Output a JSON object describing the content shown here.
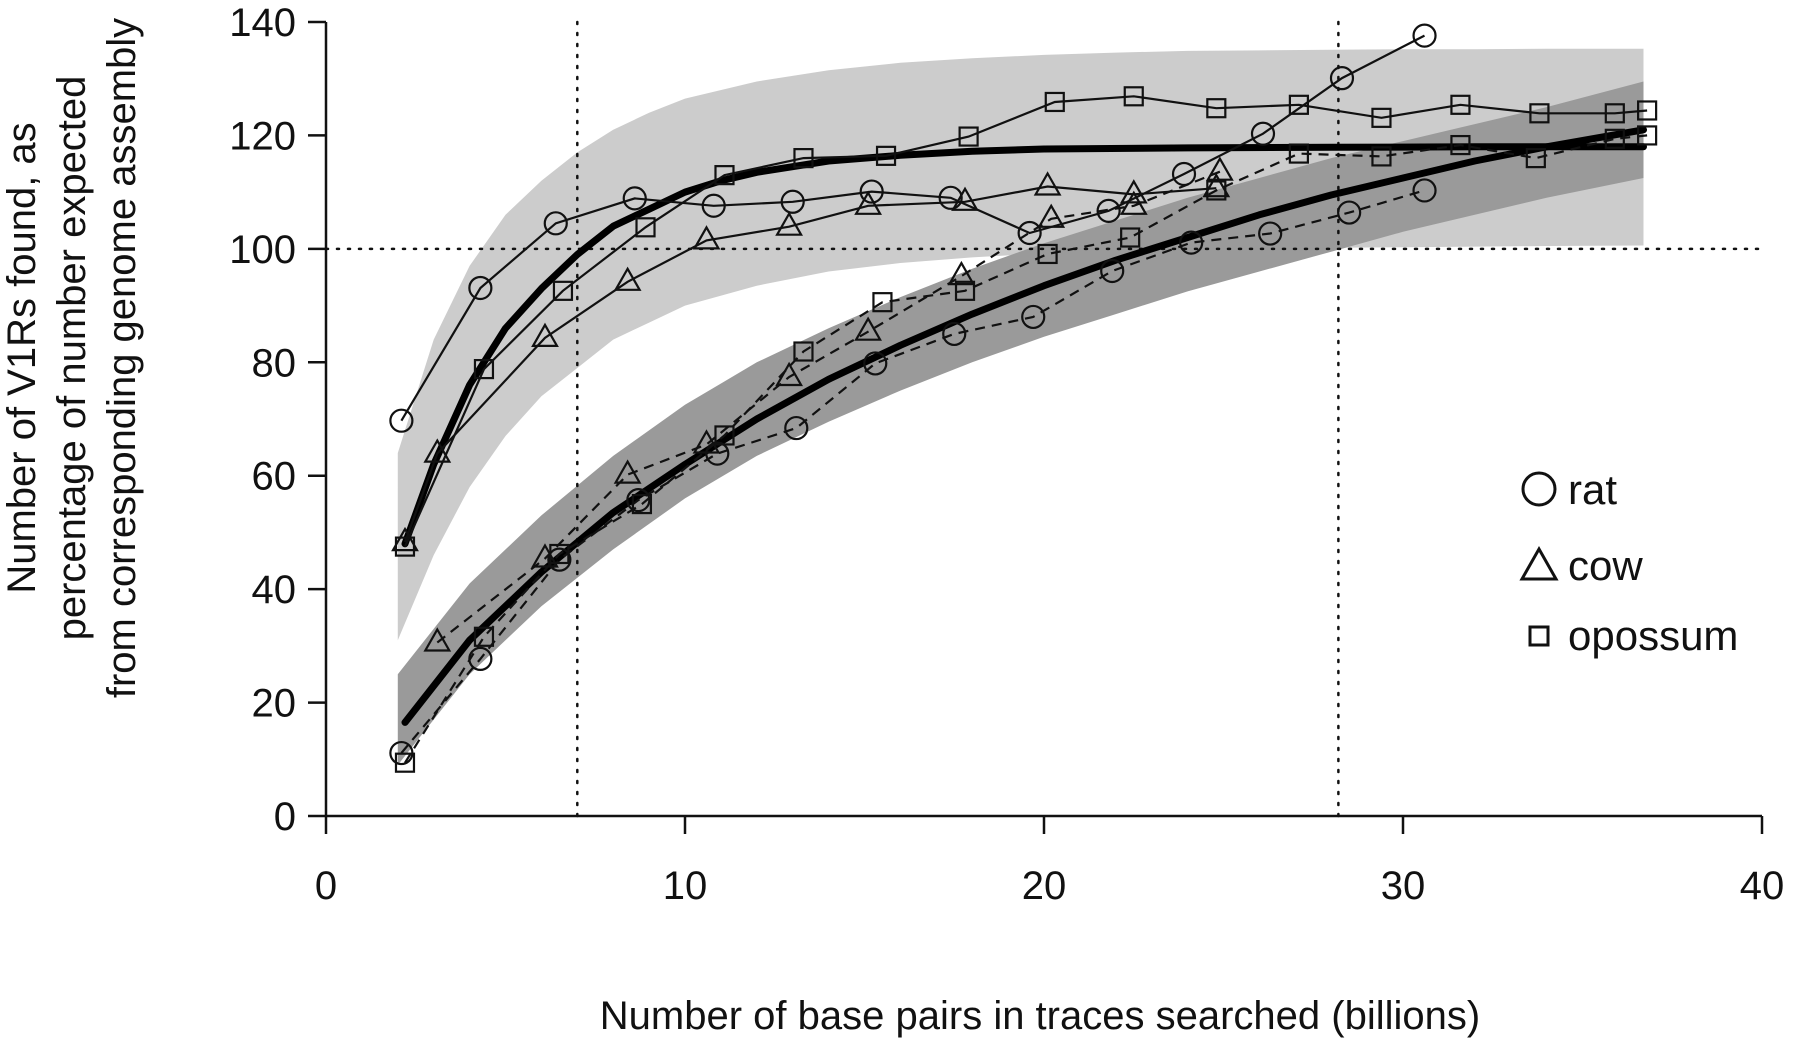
{
  "chart_data": {
    "type": "line",
    "title": "",
    "xlabel": "Number of base pairs in traces searched (billions)",
    "ylabel_lines": [
      "Number of V1Rs found, as",
      "percentage of number expected",
      "from corresponding genome assembly"
    ],
    "xlim": [
      0,
      40
    ],
    "ylim": [
      0,
      140
    ],
    "x_ticks": [
      0,
      10,
      20,
      30,
      40
    ],
    "y_ticks": [
      0,
      20,
      40,
      60,
      80,
      100,
      120,
      140
    ],
    "grid": false,
    "legend_position": "right",
    "reference_lines": {
      "horizontal_y": [
        100
      ],
      "vertical_x": [
        7,
        28.2
      ]
    },
    "bands": [
      {
        "fill": "#cccccc",
        "x": [
          2,
          3,
          4,
          5,
          6,
          7,
          8,
          9,
          10,
          12,
          14,
          16,
          18,
          20,
          22,
          24,
          26,
          28,
          30,
          32,
          34,
          36.7
        ],
        "lower": [
          31,
          46,
          58,
          67,
          74,
          79,
          84,
          87,
          90,
          93.5,
          96,
          97.5,
          98.5,
          99.2,
          99.6,
          99.9,
          100.1,
          100.2,
          100.3,
          100.4,
          100.5,
          100.6
        ],
        "upper": [
          64,
          84,
          97,
          106,
          112,
          117,
          121,
          124,
          126.5,
          129.5,
          131.5,
          132.8,
          133.6,
          134.2,
          134.6,
          134.9,
          135,
          135.1,
          135.2,
          135.2,
          135.3,
          135.3
        ]
      },
      {
        "fill": "#9a9a9a",
        "x": [
          2,
          4,
          6,
          8,
          10,
          12,
          14,
          16,
          18,
          20,
          22,
          24,
          26,
          28,
          30,
          32,
          34,
          36.7
        ],
        "lower": [
          9,
          25,
          37,
          47,
          56,
          63.5,
          69.5,
          75,
          80,
          84.5,
          88.5,
          92.5,
          96,
          99.5,
          103,
          106,
          109,
          112.5
        ],
        "upper": [
          25,
          41,
          53,
          63.5,
          72.5,
          80,
          86,
          91.5,
          96.5,
          101,
          105,
          109,
          112.5,
          116,
          119,
          122,
          125,
          129.5
        ]
      }
    ],
    "fits": [
      {
        "x": [
          2.2,
          3,
          4,
          5,
          6,
          7,
          8,
          9,
          10,
          11,
          12,
          14,
          16,
          18,
          20,
          24,
          28,
          32,
          36.7
        ],
        "y": [
          48,
          62,
          76,
          86,
          93,
          99,
          104,
          107,
          110,
          112,
          113.5,
          115.5,
          116.5,
          117.2,
          117.6,
          117.8,
          117.9,
          118,
          118
        ]
      },
      {
        "x": [
          2.2,
          4,
          6,
          8,
          10,
          12,
          14,
          16,
          18,
          20,
          22,
          24,
          26,
          28,
          30,
          32,
          34,
          36.7
        ],
        "y": [
          16.5,
          31,
          43,
          53.5,
          62,
          70,
          77,
          83,
          88.5,
          93.5,
          98,
          102,
          106,
          109.5,
          112.5,
          115.5,
          118,
          121
        ]
      }
    ],
    "series": [
      {
        "name": "rat",
        "marker": "circle",
        "runs": [
          {
            "x": [
              2.1,
              4.3,
              6.4,
              8.6,
              10.8,
              13,
              15.2,
              17.4,
              19.6,
              21.8,
              23.9,
              26.1,
              28.3,
              30.6
            ],
            "y": [
              69.7,
              93.1,
              104.5,
              108.9,
              107.6,
              108.3,
              110.1,
              109,
              102.8,
              106.7,
              113.2,
              120.3,
              130.1,
              137.6
            ],
            "dashed": false
          },
          {
            "x": [
              2.1,
              4.3,
              6.5,
              8.7,
              10.9,
              13.1,
              15.3,
              17.5,
              19.7,
              21.9,
              24.1,
              26.3,
              28.5,
              30.6
            ],
            "y": [
              11.1,
              27.7,
              45.2,
              55.7,
              63.9,
              68.4,
              79.8,
              85,
              88,
              96.1,
              101.1,
              102.7,
              106.4,
              110.3
            ],
            "dashed": true
          }
        ]
      },
      {
        "name": "cow",
        "marker": "triangle",
        "runs": [
          {
            "x": [
              2.2,
              3.1,
              6.1,
              8.4,
              10.6,
              12.9,
              15.1,
              17.8,
              20.1,
              22.5,
              24.8
            ],
            "y": [
              48.3,
              63.9,
              84.3,
              94.2,
              101.5,
              103.9,
              107.6,
              108.3,
              111,
              109.6,
              110.7
            ],
            "dashed": false
          },
          {
            "x": [
              3.1,
              6.1,
              8.4,
              10.6,
              12.9,
              15.1,
              17.7,
              20.2,
              22.5,
              24.9
            ],
            "y": [
              30.6,
              45.4,
              60.2,
              65.5,
              77.4,
              85.4,
              95.2,
              105.3,
              107.6,
              113.6
            ],
            "dashed": true
          }
        ]
      },
      {
        "name": "opossum",
        "marker": "square",
        "runs": [
          {
            "x": [
              2.2,
              4.4,
              6.6,
              8.9,
              11.1,
              13.3,
              15.6,
              17.9,
              20.3,
              22.5,
              24.8,
              27.1,
              29.4,
              31.6,
              33.8,
              35.9,
              36.8
            ],
            "y": [
              47.5,
              78.8,
              92.6,
              103.8,
              113,
              116,
              116.4,
              119.8,
              125.9,
              126.9,
              124.8,
              125.4,
              123.1,
              125.4,
              123.9,
              123.9,
              124.4
            ],
            "dashed": false
          },
          {
            "x": [
              2.2,
              4.4,
              6.5,
              8.8,
              11.1,
              13.3,
              15.5,
              17.8,
              20.1,
              22.4,
              24.8,
              27.1,
              29.4,
              31.6,
              33.7,
              35.9,
              36.8
            ],
            "y": [
              9.4,
              31.6,
              46.2,
              55,
              67.1,
              81.9,
              90.6,
              92.6,
              99.1,
              102,
              110.3,
              116.8,
              116.3,
              118.3,
              116,
              119.4,
              120
            ],
            "dashed": true
          }
        ]
      }
    ]
  }
}
